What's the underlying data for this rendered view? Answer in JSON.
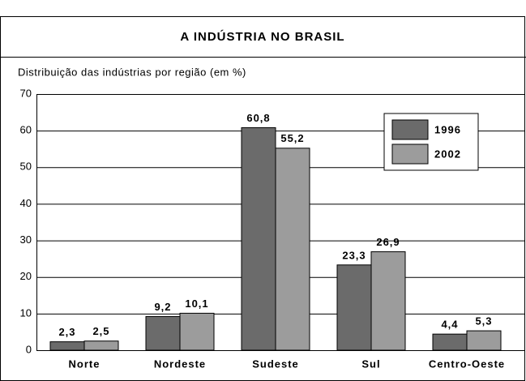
{
  "chart_data": {
    "type": "bar",
    "title": "A INDÚSTRIA NO BRASIL",
    "subtitle": "Distribuição das indústrias por região (em %)",
    "categories": [
      "Norte",
      "Nordeste",
      "Sudeste",
      "Sul",
      "Centro-Oeste"
    ],
    "series": [
      {
        "name": "1996",
        "color": "#6b6b6b",
        "values": [
          2.3,
          9.2,
          60.8,
          23.3,
          4.4
        ],
        "value_labels": [
          "2,3",
          "9,2",
          "60,8",
          "23,3",
          "4,4"
        ]
      },
      {
        "name": "2002",
        "color": "#9c9c9c",
        "values": [
          2.5,
          10.1,
          55.2,
          26.9,
          5.3
        ],
        "value_labels": [
          "2,5",
          "10,1",
          "55,2",
          "26,9",
          "5,3"
        ]
      }
    ],
    "ylim": [
      0,
      70
    ],
    "yticks": [
      0,
      10,
      20,
      30,
      40,
      50,
      60,
      70
    ],
    "grid": true,
    "legend": "upper right"
  }
}
